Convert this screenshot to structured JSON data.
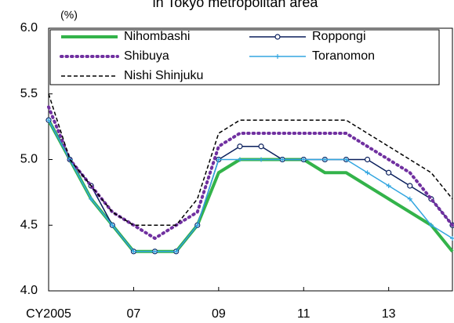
{
  "chart_data": {
    "type": "line",
    "title": "in Tokyo metropolitan area",
    "y_label": "(%)",
    "x": [
      2005,
      2005.5,
      2006,
      2006.5,
      2007,
      2007.5,
      2008,
      2008.5,
      2009,
      2009.5,
      2010,
      2010.5,
      2011,
      2011.5,
      2012,
      2012.5,
      2013,
      2013.5,
      2014,
      2014.5
    ],
    "series": [
      {
        "name": "Nihombashi",
        "color": "#33b34a",
        "width": 4,
        "dash": "solid",
        "marker": "none",
        "values": [
          5.3,
          5.0,
          4.7,
          4.5,
          4.3,
          4.3,
          4.3,
          4.5,
          4.9,
          5.0,
          5.0,
          5.0,
          5.0,
          4.9,
          4.9,
          4.8,
          4.7,
          4.6,
          4.5,
          4.3
        ]
      },
      {
        "name": "Roppongi",
        "color": "#0a1f5c",
        "width": 1.5,
        "dash": "solid",
        "marker": "circle",
        "values": [
          5.3,
          5.0,
          4.8,
          4.5,
          4.3,
          4.3,
          4.3,
          4.5,
          5.0,
          5.1,
          5.1,
          5.0,
          5.0,
          5.0,
          5.0,
          5.0,
          4.9,
          4.8,
          4.7,
          4.5
        ]
      },
      {
        "name": "Shibuya",
        "color": "#7030a0",
        "width": 4,
        "dash": "dotted",
        "marker": "none",
        "values": [
          5.4,
          5.0,
          4.8,
          4.6,
          4.5,
          4.4,
          4.5,
          4.6,
          5.1,
          5.2,
          5.2,
          5.2,
          5.2,
          5.2,
          5.2,
          5.1,
          5.0,
          4.9,
          4.7,
          4.5
        ]
      },
      {
        "name": "Toranomon",
        "color": "#33a6e0",
        "width": 1.5,
        "dash": "solid",
        "marker": "plus",
        "values": [
          5.3,
          5.0,
          4.7,
          4.5,
          4.3,
          4.3,
          4.3,
          4.5,
          5.0,
          5.0,
          5.0,
          5.0,
          5.0,
          5.0,
          5.0,
          4.9,
          4.8,
          4.7,
          4.5,
          4.4
        ]
      },
      {
        "name": "Nishi Shinjuku",
        "color": "#000000",
        "width": 1.5,
        "dash": "dashed",
        "marker": "none",
        "values": [
          5.5,
          5.0,
          4.8,
          4.6,
          4.5,
          4.5,
          4.5,
          4.7,
          5.2,
          5.3,
          5.3,
          5.3,
          5.3,
          5.3,
          5.3,
          5.2,
          5.1,
          5.0,
          4.9,
          4.7
        ]
      }
    ],
    "xlim": [
      2005,
      2014.5
    ],
    "xticks": [
      {
        "value": 2005,
        "label": "CY2005"
      },
      {
        "value": 2007,
        "label": "07"
      },
      {
        "value": 2009,
        "label": "09"
      },
      {
        "value": 2011,
        "label": "11"
      },
      {
        "value": 2013,
        "label": "13"
      }
    ],
    "ylim": [
      4,
      6
    ],
    "yticks": [
      {
        "value": 4,
        "label": "4.0"
      },
      {
        "value": 4.5,
        "label": "4.5"
      },
      {
        "value": 5,
        "label": "5.0"
      },
      {
        "value": 5.5,
        "label": "5.5"
      },
      {
        "value": 6,
        "label": "6.0"
      }
    ],
    "grid": false
  }
}
